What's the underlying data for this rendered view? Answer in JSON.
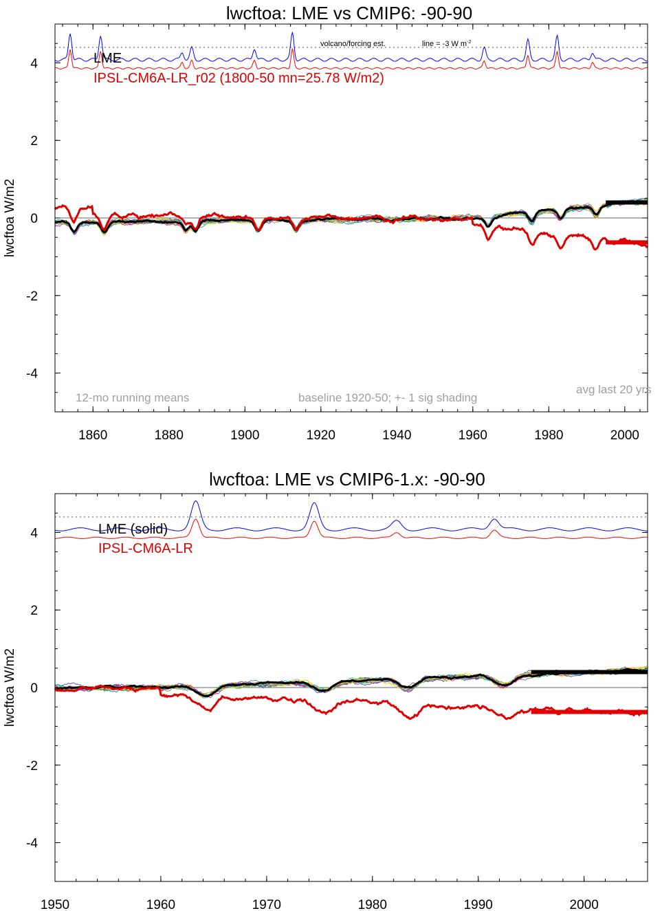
{
  "chart_data": [
    {
      "type": "line",
      "title": "lwcftoa: LME vs CMIP6: -90-90",
      "ylabel": "lwcftoa W/m2",
      "xlabel": "",
      "xlim": [
        1850,
        2006
      ],
      "ylim": [
        -5,
        5
      ],
      "x_ticks": [
        1860,
        1880,
        1900,
        1920,
        1940,
        1960,
        1980,
        2000
      ],
      "y_ticks": [
        -4,
        -2,
        0,
        2,
        4
      ],
      "legend": [
        {
          "text": "LME",
          "color": "#000000"
        },
        {
          "text": "IPSL-CM6A-LR_r02 (1800-50 mn=25.78 W/m2)",
          "color": "#e00000"
        }
      ],
      "annotations": {
        "volcano_note": "volcano/forcing est.",
        "line_note": "line = -3 W m",
        "line_note_sup": "-2",
        "running_mean": "12-mo running means",
        "baseline": "baseline 1920-50; +- 1 sig shading",
        "avg_last": "avg last 20 yrs"
      },
      "reference_line_y": 4.4,
      "zero_line": true,
      "volcanic_peaks": [
        1854,
        1862,
        1883.5,
        1886,
        1902.5,
        1912.5,
        1963,
        1974.5,
        1982.2,
        1991.5
      ],
      "avg_last20": {
        "x": [
          1995,
          2006
        ],
        "lme": 0.4,
        "ipsl": -0.63
      },
      "colors": {
        "lme": "#000000",
        "ipsl": "#e00000",
        "forcing_lme": "#0000ff",
        "forcing_ipsl": "#ff0000",
        "reference": "#777777"
      },
      "ensemble_colors": [
        "#00bcd4",
        "#4caf50",
        "#9c27b0",
        "#ff9800",
        "#795548",
        "#607d8b",
        "#e91e63",
        "#3f51b5",
        "#8bc34a",
        "#ffc107",
        "#009688",
        "#a0a0a0",
        "#673ab7",
        "#cddc39"
      ]
    },
    {
      "type": "line",
      "title": "lwcftoa: LME vs CMIP6-1.x: -90-90",
      "ylabel": "lwcftoa W/m2",
      "xlabel": "",
      "xlim": [
        1950,
        2006
      ],
      "ylim": [
        -5,
        5
      ],
      "x_ticks": [
        1950,
        1960,
        1970,
        1980,
        1990,
        2000
      ],
      "y_ticks": [
        -4,
        -2,
        0,
        2,
        4
      ],
      "legend": [
        {
          "text": "LME (solid)",
          "color": "#000000"
        },
        {
          "text": "IPSL-CM6A-LR",
          "color": "#e00000"
        }
      ],
      "reference_line_y": 4.4,
      "zero_line": true,
      "volcanic_peaks": [
        1963.3,
        1974.5,
        1982.3,
        1991.5
      ],
      "avg_last20": {
        "x": [
          1995,
          2006
        ],
        "lme": 0.4,
        "ipsl": -0.63
      },
      "colors": {
        "lme": "#000000",
        "ipsl": "#e00000",
        "forcing_lme": "#0000ff",
        "forcing_ipsl": "#ff0000",
        "reference": "#777777"
      },
      "ensemble_colors": [
        "#00bcd4",
        "#4caf50",
        "#9c27b0",
        "#ff9800",
        "#795548",
        "#607d8b",
        "#e91e63",
        "#3f51b5",
        "#8bc34a",
        "#ffc107",
        "#009688",
        "#a0a0a0",
        "#673ab7",
        "#cddc39"
      ]
    }
  ]
}
